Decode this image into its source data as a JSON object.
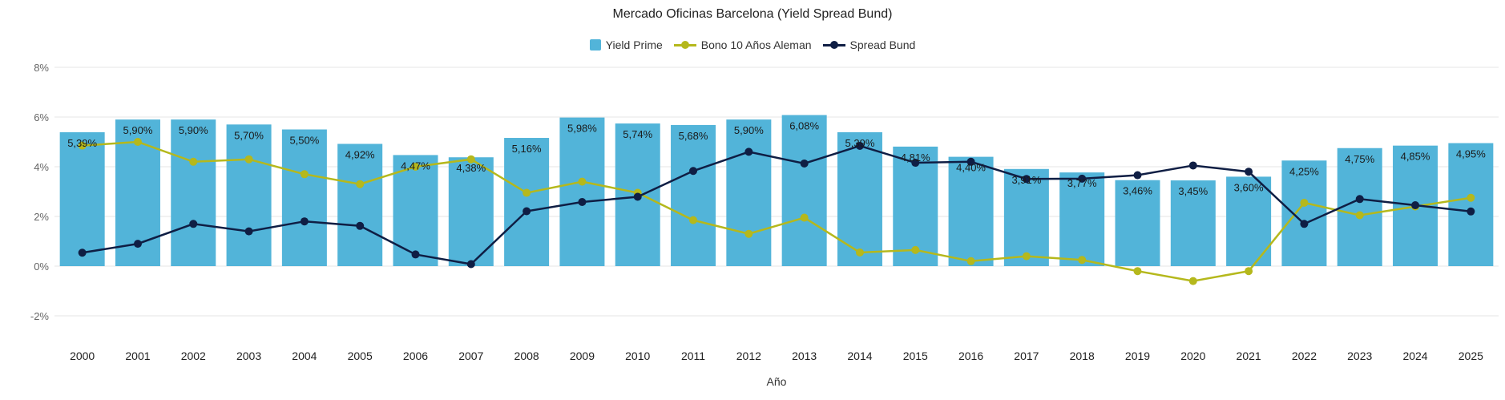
{
  "chart_data": {
    "type": "bar",
    "title": "Mercado Oficinas Barcelona (Yield Spread Bund)",
    "xlabel": "Año",
    "ylabel": "",
    "ylim": [
      -3,
      8
    ],
    "yticks": [
      -2,
      0,
      2,
      4,
      6,
      8
    ],
    "ytick_labels": [
      "-2%",
      "0%",
      "2%",
      "4%",
      "6%",
      "8%"
    ],
    "grid": true,
    "legend_position": "top-center",
    "categories": [
      "2000",
      "2001",
      "2002",
      "2003",
      "2004",
      "2005",
      "2006",
      "2007",
      "2008",
      "2009",
      "2010",
      "2011",
      "2012",
      "2013",
      "2014",
      "2015",
      "2016",
      "2017",
      "2018",
      "2019",
      "2020",
      "2021",
      "2022",
      "2023",
      "2024",
      "2025"
    ],
    "series": [
      {
        "name": "Yield Prime",
        "type": "bar",
        "color": "#52b4d9",
        "values": [
          5.39,
          5.9,
          5.9,
          5.7,
          5.5,
          4.92,
          4.47,
          4.38,
          5.16,
          5.98,
          5.74,
          5.68,
          5.9,
          6.08,
          5.39,
          4.81,
          4.4,
          3.91,
          3.77,
          3.46,
          3.45,
          3.6,
          4.25,
          4.75,
          4.85,
          4.95
        ],
        "labels": [
          "5,39%",
          "5,90%",
          "5,90%",
          "5,70%",
          "5,50%",
          "4,92%",
          "4,47%",
          "4,38%",
          "5,16%",
          "5,98%",
          "5,74%",
          "5,68%",
          "5,90%",
          "6,08%",
          "5,39%",
          "4,81%",
          "4,40%",
          "3,91%",
          "3,77%",
          "3,46%",
          "3,45%",
          "3,60%",
          "4,25%",
          "4,75%",
          "4,85%",
          "4,95%"
        ]
      },
      {
        "name": "Bono 10 Años Aleman",
        "type": "line",
        "color": "#b5b81c",
        "values": [
          4.85,
          5.0,
          4.2,
          4.3,
          3.7,
          3.3,
          4.0,
          4.3,
          2.95,
          3.4,
          2.95,
          1.85,
          1.3,
          1.95,
          0.55,
          0.65,
          0.2,
          0.4,
          0.25,
          -0.2,
          -0.6,
          -0.2,
          2.55,
          2.05,
          2.4,
          2.75
        ]
      },
      {
        "name": "Spread Bund",
        "type": "line",
        "color": "#0f1e44",
        "values": [
          0.54,
          0.9,
          1.7,
          1.4,
          1.8,
          1.62,
          0.47,
          0.08,
          2.21,
          2.58,
          2.79,
          3.83,
          4.6,
          4.13,
          4.84,
          4.16,
          4.2,
          3.51,
          3.52,
          3.66,
          4.05,
          3.8,
          1.7,
          2.7,
          2.45,
          2.2
        ]
      }
    ]
  }
}
